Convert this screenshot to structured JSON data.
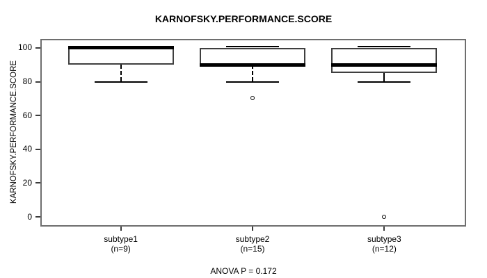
{
  "chart_data": {
    "type": "box",
    "title": "KARNOFSKY.PERFORMANCE.SCORE",
    "ylabel": "KARNOFSKY.PERFORMANCE.SCORE",
    "xlabel": "",
    "annotation": "ANOVA P = 0.172",
    "yticks": [
      0,
      20,
      40,
      60,
      80,
      100
    ],
    "ylim": [
      -4.1,
      104.5
    ],
    "grid": false,
    "legend": "none",
    "categories": [
      "subtype1",
      "subtype2",
      "subtype3"
    ],
    "category_sublabels": [
      "(n=9)",
      "(n=15)",
      "(n=12)"
    ],
    "groups": [
      {
        "label": "subtype1",
        "n": 9,
        "whisker_low": 80,
        "q1": 90,
        "median": 100,
        "q3": 100,
        "whisker_high": 100,
        "outliers": []
      },
      {
        "label": "subtype2",
        "n": 15,
        "whisker_low": 80,
        "q1": 90,
        "median": 90,
        "q3": 100,
        "whisker_high": 100,
        "outliers": [
          70
        ]
      },
      {
        "label": "subtype3",
        "n": 12,
        "whisker_low": 80,
        "q1": 85,
        "median": 90,
        "q3": 100,
        "whisker_high": 100,
        "outliers": [
          0
        ]
      }
    ],
    "colors": {
      "background": "#ffffff",
      "box_fill": "#ffffff",
      "line": "#000000",
      "box_border": "#3f3f3f",
      "frame": "#6e6e6e",
      "tick": "#3c3c3c"
    }
  }
}
